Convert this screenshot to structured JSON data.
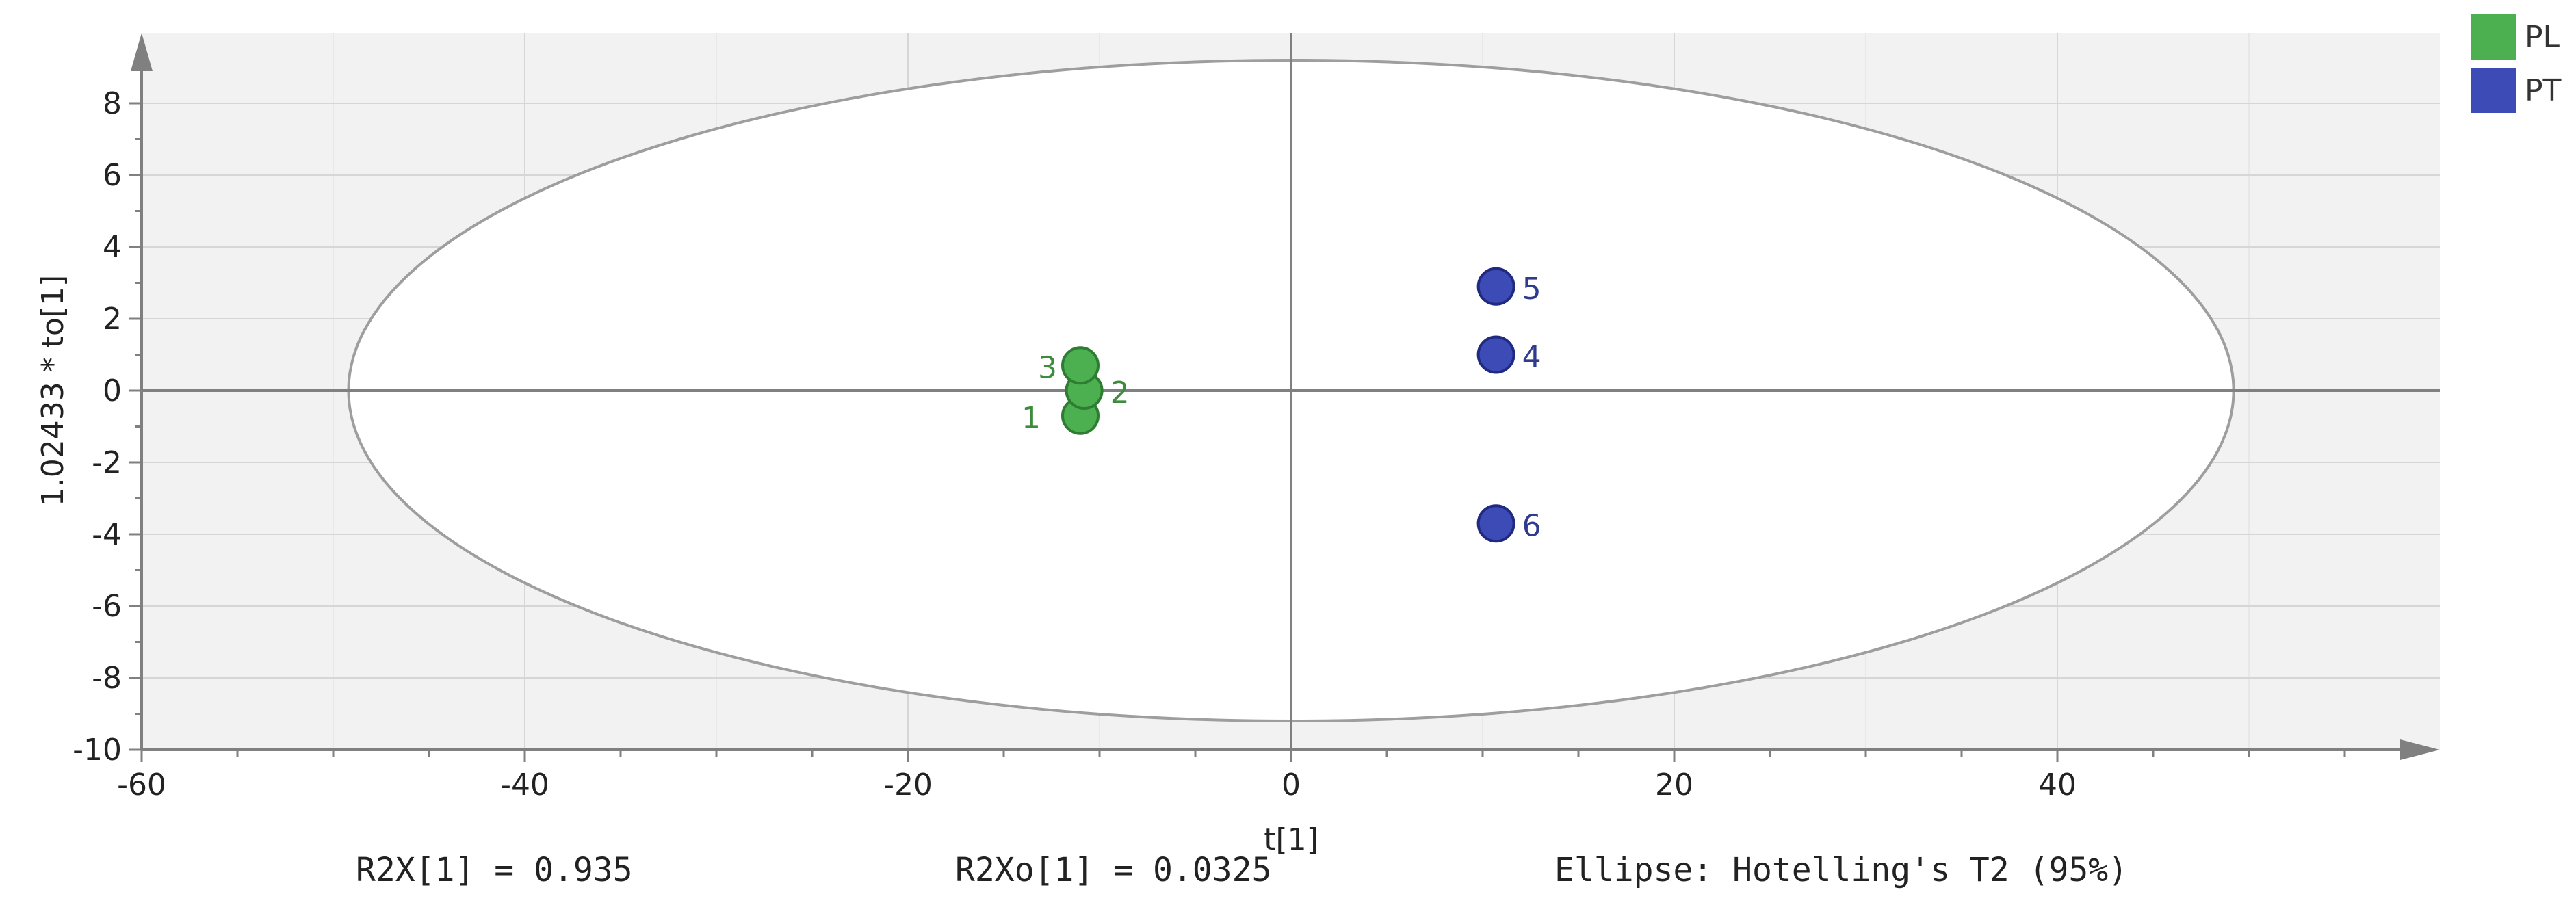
{
  "chart_data": {
    "type": "scatter",
    "xlabel": "t[1]",
    "ylabel": "1.02433 * to[1]",
    "xlim": [
      -60,
      60
    ],
    "ylim": [
      -10,
      10
    ],
    "x_ticks": [
      -60,
      -40,
      -20,
      0,
      20,
      40
    ],
    "y_ticks": [
      -10,
      -8,
      -6,
      -4,
      -2,
      0,
      2,
      4,
      6,
      8
    ],
    "grid": true,
    "legend_position": "top-right",
    "ellipse": {
      "center": [
        0,
        0
      ],
      "semi_axis_x": 49.2,
      "semi_axis_y": 9.2,
      "label": "Ellipse: Hotelling's T2 (95%)"
    },
    "series": [
      {
        "name": "PL",
        "color": "#4caf50",
        "points": [
          {
            "label": "1",
            "x": -11,
            "y": -0.7
          },
          {
            "label": "2",
            "x": -10.8,
            "y": 0.0
          },
          {
            "label": "3",
            "x": -11,
            "y": 0.7
          }
        ]
      },
      {
        "name": "PT",
        "color": "#3c4bb5",
        "points": [
          {
            "label": "4",
            "x": 10.7,
            "y": 1.0
          },
          {
            "label": "5",
            "x": 10.7,
            "y": 2.9
          },
          {
            "label": "6",
            "x": 10.7,
            "y": -3.7
          }
        ]
      }
    ],
    "stats": {
      "r2x": "R2X[1] = 0.935",
      "r2xo": "R2Xo[1] = 0.0325",
      "ellipse_note": "Ellipse: Hotelling's T2 (95%)"
    }
  },
  "colors": {
    "plot_background": "#f2f2f2",
    "ellipse_fill": "#ffffff",
    "ellipse_stroke": "#9e9e9e",
    "grid": "#d6d6d6",
    "axis": "#808080",
    "pl_label": "#3d8b3d",
    "pt_label": "#2f3b8f"
  }
}
